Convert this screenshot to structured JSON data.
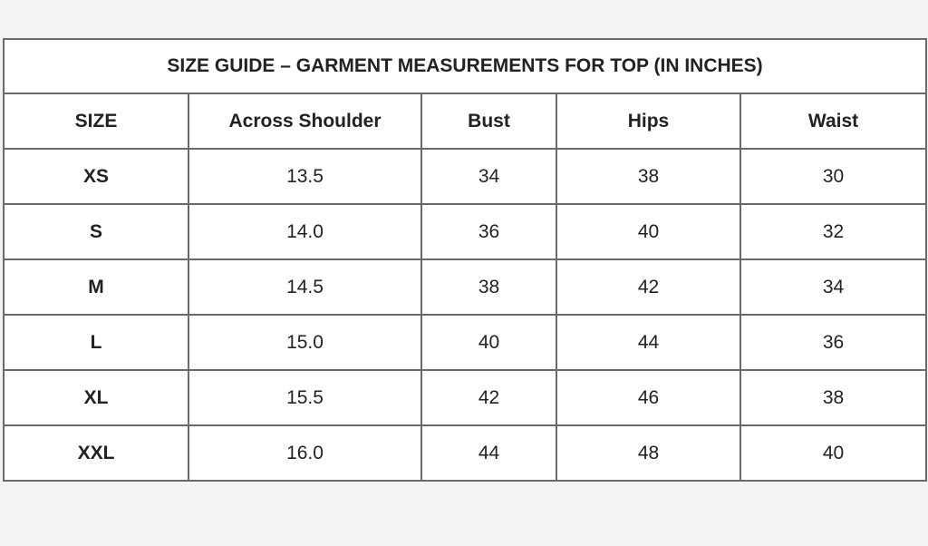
{
  "title": "SIZE GUIDE – GARMENT MEASUREMENTS FOR TOP (IN INCHES)",
  "headers": [
    "SIZE",
    "Across Shoulder",
    "Bust",
    "Hips",
    "Waist"
  ],
  "rows": [
    [
      "XS",
      "13.5",
      "34",
      "38",
      "30"
    ],
    [
      "S",
      "14.0",
      "36",
      "40",
      "32"
    ],
    [
      "M",
      "14.5",
      "38",
      "42",
      "34"
    ],
    [
      "L",
      "15.0",
      "40",
      "44",
      "36"
    ],
    [
      "XL",
      "15.5",
      "42",
      "46",
      "38"
    ],
    [
      "XXL",
      "16.0",
      "44",
      "48",
      "40"
    ]
  ]
}
